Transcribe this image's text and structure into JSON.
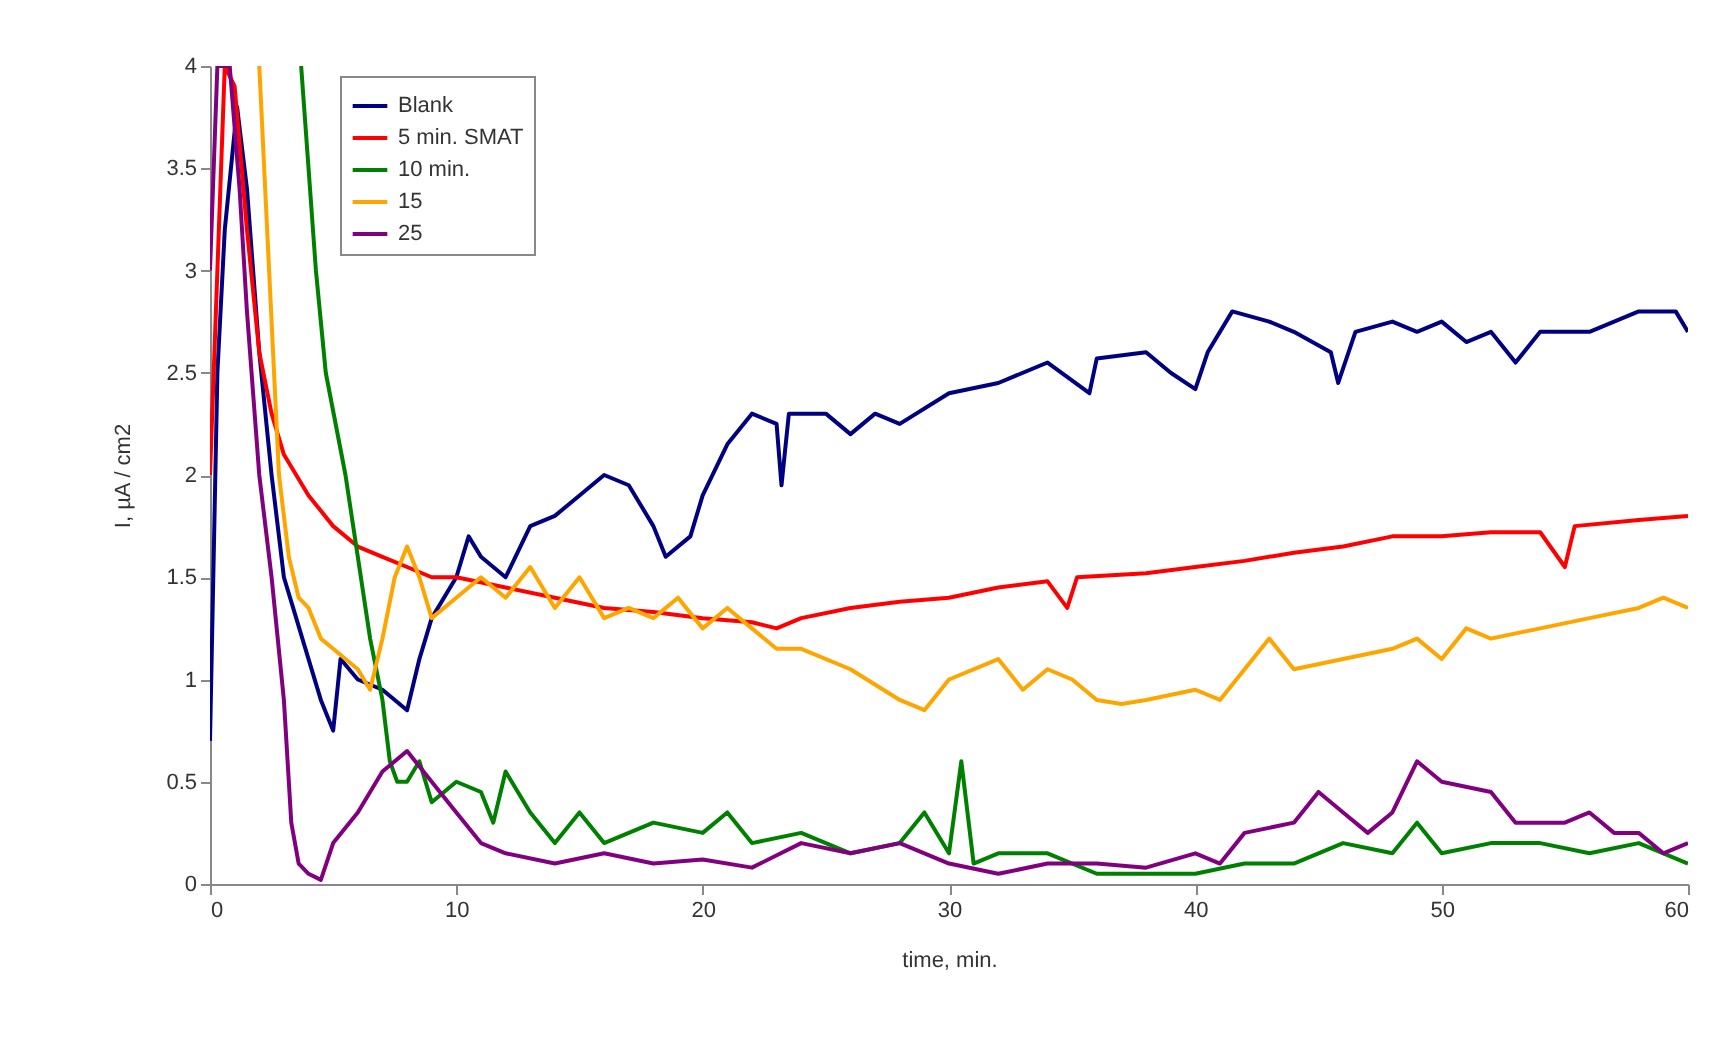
{
  "chart_data": {
    "type": "line",
    "xlabel": "time, min.",
    "ylabel": "I,  µA / cm2",
    "xlim": [
      0,
      60
    ],
    "ylim": [
      0,
      4
    ],
    "xticks": [
      0,
      10,
      20,
      30,
      40,
      50,
      60
    ],
    "yticks": [
      0,
      0.5,
      1,
      1.5,
      2,
      2.5,
      3,
      3.5,
      4
    ],
    "grid": false,
    "legend": "top left",
    "line_style": "solid",
    "marker": "none",
    "series": [
      {
        "name": "Blank",
        "color": "#000080",
        "x": [
          0,
          0.3,
          0.6,
          1.1,
          1.5,
          2,
          2.5,
          3,
          3.5,
          4,
          4.5,
          5,
          5.3,
          6,
          7,
          8,
          8.5,
          9,
          10,
          10.5,
          11,
          12,
          13,
          14,
          15,
          16,
          17,
          18,
          18.5,
          19.5,
          20,
          21,
          22,
          23,
          23.2,
          23.5,
          25,
          26,
          27,
          28,
          30,
          32,
          34,
          35.7,
          36,
          38,
          39,
          40,
          40.5,
          41.5,
          43,
          44,
          45.5,
          45.8,
          46.5,
          48,
          49,
          50,
          51,
          52,
          53,
          54,
          56,
          58,
          59.5,
          60
        ],
        "values": [
          0.7,
          2.5,
          3.2,
          3.8,
          3.4,
          2.6,
          2.0,
          1.5,
          1.3,
          1.1,
          0.9,
          0.75,
          1.1,
          1.0,
          0.95,
          0.85,
          1.1,
          1.3,
          1.5,
          1.7,
          1.6,
          1.5,
          1.75,
          1.8,
          1.9,
          2.0,
          1.95,
          1.75,
          1.6,
          1.7,
          1.9,
          2.15,
          2.3,
          2.25,
          1.95,
          2.3,
          2.3,
          2.2,
          2.3,
          2.25,
          2.4,
          2.45,
          2.55,
          2.4,
          2.57,
          2.6,
          2.5,
          2.42,
          2.6,
          2.8,
          2.75,
          2.7,
          2.6,
          2.45,
          2.7,
          2.75,
          2.7,
          2.75,
          2.65,
          2.7,
          2.55,
          2.7,
          2.7,
          2.8,
          2.8,
          2.7
        ]
      },
      {
        "name": "5 min. SMAT",
        "color": "#ff0000",
        "x": [
          0,
          0.3,
          0.6,
          1,
          1.5,
          2,
          2.5,
          3,
          4,
          5,
          6,
          7,
          8,
          9,
          10,
          12,
          14,
          16,
          18,
          20,
          22,
          23,
          24,
          26,
          28,
          30,
          32,
          34,
          34.8,
          35.2,
          38,
          40,
          42,
          44,
          46,
          48,
          50,
          52,
          54,
          55,
          55.4,
          58,
          60
        ],
        "values": [
          2.0,
          3,
          4,
          3.9,
          3.2,
          2.6,
          2.3,
          2.1,
          1.9,
          1.75,
          1.65,
          1.6,
          1.55,
          1.5,
          1.5,
          1.45,
          1.4,
          1.35,
          1.33,
          1.3,
          1.28,
          1.25,
          1.3,
          1.35,
          1.38,
          1.4,
          1.45,
          1.48,
          1.35,
          1.5,
          1.52,
          1.55,
          1.58,
          1.62,
          1.65,
          1.7,
          1.7,
          1.72,
          1.72,
          1.55,
          1.75,
          1.78,
          1.8
        ]
      },
      {
        "name": "10 min.",
        "color": "#008000",
        "x": [
          3.7,
          4.3,
          4.7,
          5.5,
          6,
          6.5,
          7,
          7.3,
          7.6,
          8,
          8.5,
          9,
          10,
          11,
          11.5,
          12,
          13,
          14,
          15,
          16,
          18,
          20,
          21,
          22,
          24,
          26,
          28,
          29,
          30,
          30.5,
          31,
          32,
          34,
          36,
          38,
          40,
          42,
          44,
          46,
          48,
          49,
          50,
          52,
          54,
          56,
          58,
          59,
          60
        ],
        "values": [
          4,
          3.0,
          2.5,
          2.0,
          1.6,
          1.2,
          0.9,
          0.6,
          0.5,
          0.5,
          0.6,
          0.4,
          0.5,
          0.45,
          0.3,
          0.55,
          0.35,
          0.2,
          0.35,
          0.2,
          0.3,
          0.25,
          0.35,
          0.2,
          0.25,
          0.15,
          0.2,
          0.35,
          0.15,
          0.6,
          0.1,
          0.15,
          0.15,
          0.05,
          0.05,
          0.05,
          0.1,
          0.1,
          0.2,
          0.15,
          0.3,
          0.15,
          0.2,
          0.2,
          0.15,
          0.2,
          0.15,
          0.1
        ]
      },
      {
        "name": "15",
        "color": "#ffa500",
        "x": [
          2,
          2.4,
          2.8,
          3.2,
          3.6,
          4,
          4.5,
          5,
          6,
          6.5,
          7,
          7.5,
          8,
          8.5,
          9,
          10,
          11,
          12,
          13,
          14,
          15,
          16,
          17,
          18,
          19,
          20,
          21,
          22,
          23,
          24,
          26,
          28,
          29,
          30,
          32,
          33,
          34,
          35,
          36,
          37,
          38,
          40,
          41,
          42,
          43,
          44,
          46,
          48,
          49,
          50,
          51,
          52,
          54,
          56,
          58,
          59,
          60
        ],
        "values": [
          4,
          3.0,
          2.0,
          1.6,
          1.4,
          1.35,
          1.2,
          1.15,
          1.05,
          0.95,
          1.2,
          1.5,
          1.65,
          1.5,
          1.3,
          1.4,
          1.5,
          1.4,
          1.55,
          1.35,
          1.5,
          1.3,
          1.35,
          1.3,
          1.4,
          1.25,
          1.35,
          1.25,
          1.15,
          1.15,
          1.05,
          0.9,
          0.85,
          1.0,
          1.1,
          0.95,
          1.05,
          1.0,
          0.9,
          0.88,
          0.9,
          0.95,
          0.9,
          1.05,
          1.2,
          1.05,
          1.1,
          1.15,
          1.2,
          1.1,
          1.25,
          1.2,
          1.25,
          1.3,
          1.35,
          1.4,
          1.35
        ]
      },
      {
        "name": "25",
        "color": "#800080",
        "x": [
          0,
          0.3,
          0.8,
          1.2,
          1.5,
          2,
          2.5,
          3,
          3.3,
          3.6,
          4,
          4.5,
          5,
          6,
          7,
          8,
          9,
          10,
          11,
          12,
          14,
          16,
          18,
          20,
          22,
          24,
          26,
          28,
          30,
          32,
          34,
          36,
          38,
          40,
          41,
          42,
          44,
          45,
          46,
          47,
          48,
          49,
          50,
          52,
          53,
          55,
          56,
          57,
          58,
          59,
          60
        ],
        "values": [
          3.0,
          4,
          4,
          3.4,
          2.8,
          2.0,
          1.5,
          0.9,
          0.3,
          0.1,
          0.05,
          0.02,
          0.2,
          0.35,
          0.55,
          0.65,
          0.5,
          0.35,
          0.2,
          0.15,
          0.1,
          0.15,
          0.1,
          0.12,
          0.08,
          0.2,
          0.15,
          0.2,
          0.1,
          0.05,
          0.1,
          0.1,
          0.08,
          0.15,
          0.1,
          0.25,
          0.3,
          0.45,
          0.35,
          0.25,
          0.35,
          0.6,
          0.5,
          0.45,
          0.3,
          0.3,
          0.35,
          0.25,
          0.25,
          0.15,
          0.2
        ]
      }
    ]
  }
}
